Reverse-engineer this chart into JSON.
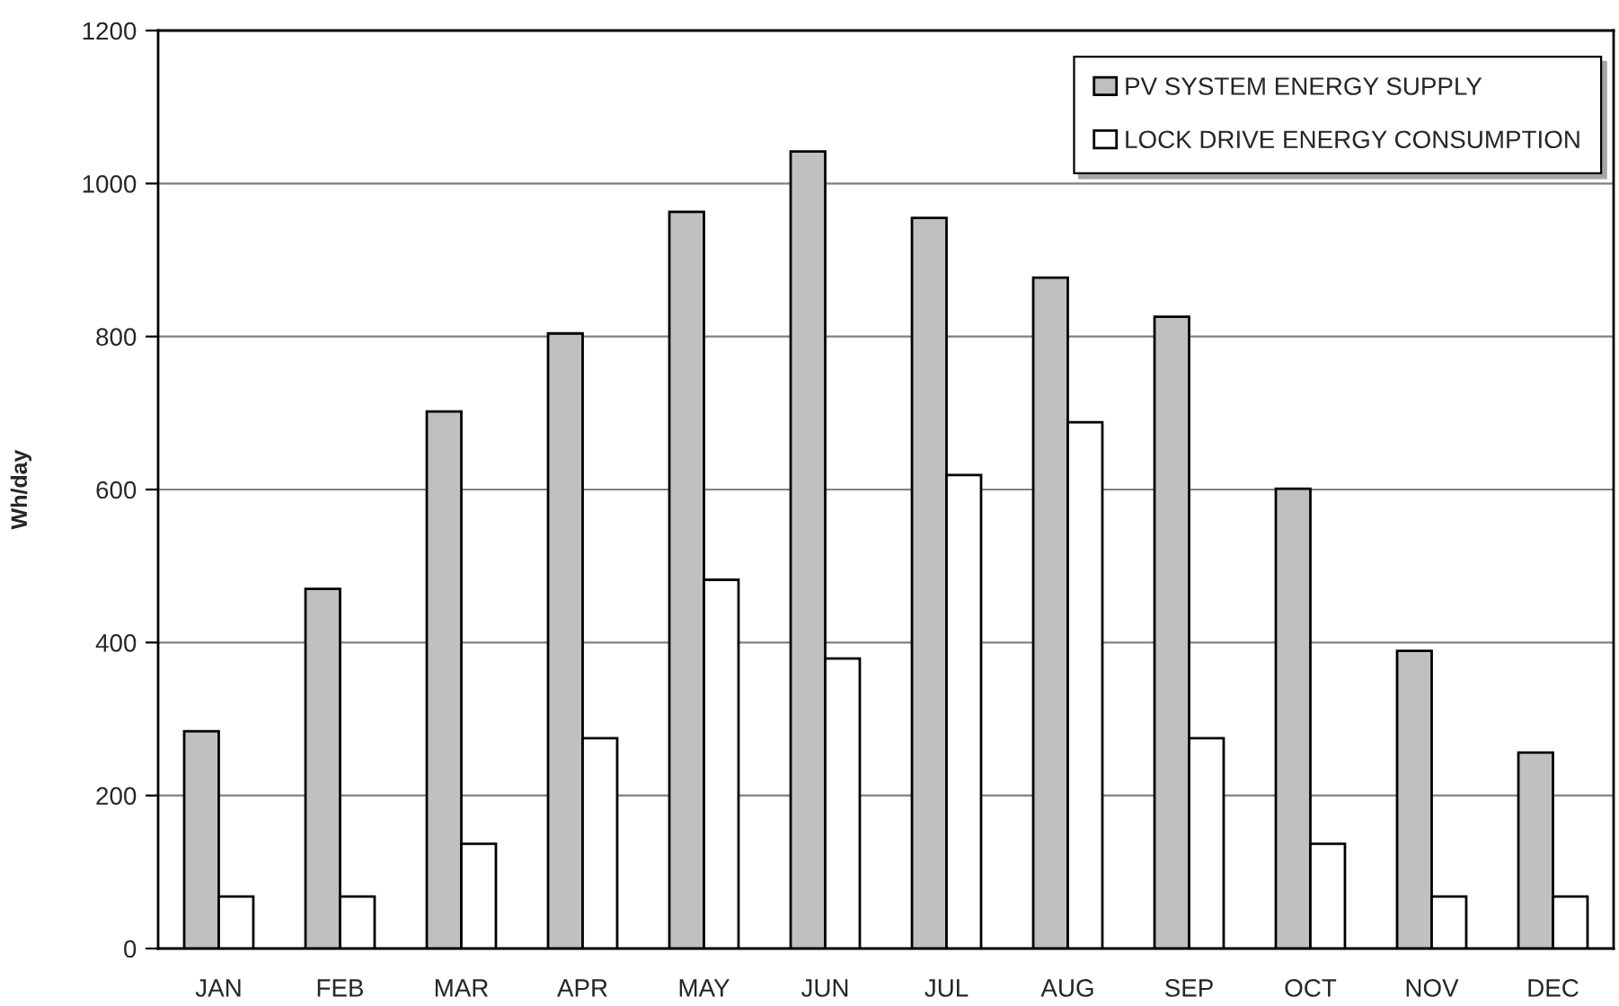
{
  "chart_data": {
    "type": "bar",
    "ylabel": "Wh/day",
    "categories": [
      "JAN",
      "FEB",
      "MAR",
      "APR",
      "MAY",
      "JUN",
      "JUL",
      "AUG",
      "SEP",
      "OCT",
      "NOV",
      "DEC"
    ],
    "series": [
      {
        "name": "PV SYSTEM ENERGY SUPPLY",
        "color": "#c0c0c0",
        "values": [
          284,
          470,
          702,
          804,
          963,
          1042,
          955,
          877,
          826,
          601,
          389,
          256
        ]
      },
      {
        "name": "LOCK DRIVE ENERGY CONSUMPTION",
        "color": "#ffffff",
        "values": [
          68,
          68,
          137,
          275,
          482,
          379,
          619,
          688,
          275,
          137,
          68,
          68
        ]
      }
    ],
    "ylim": [
      0,
      1200
    ],
    "yticks": [
      0,
      200,
      400,
      600,
      800,
      1000,
      1200
    ],
    "grid": "y",
    "legend": "top right"
  }
}
